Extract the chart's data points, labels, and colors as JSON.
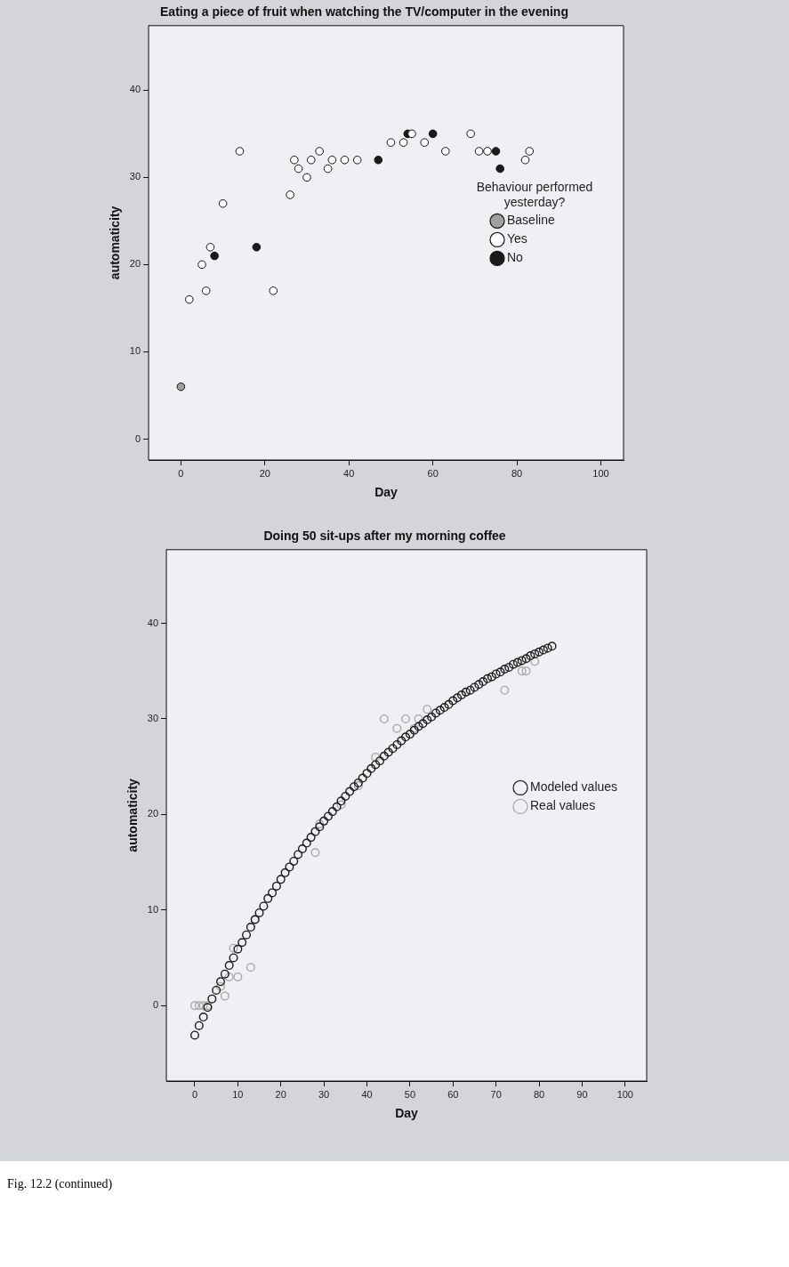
{
  "chart_data": [
    {
      "type": "scatter",
      "title": "Eating a piece of fruit when watching the TV/computer in the evening",
      "xlabel": "Day",
      "ylabel": "automaticity",
      "legend_title": "Behaviour performed yesterday?",
      "legend": "right",
      "marker": "circle",
      "grid": false,
      "xlim": [
        -7.7,
        105.4
      ],
      "ylim": [
        -2.4,
        47.4
      ],
      "xticks": [
        0,
        20,
        40,
        60,
        80,
        100
      ],
      "yticks": [
        0,
        10,
        20,
        30,
        40
      ],
      "series": [
        {
          "name": "Baseline",
          "color": "#a0a0a0",
          "x": [
            0
          ],
          "values": [
            6
          ]
        },
        {
          "name": "Yes",
          "color": "#ffffff",
          "x": [
            2,
            5,
            6,
            7,
            10,
            14,
            22,
            26,
            27,
            28,
            30,
            31,
            33,
            35,
            36,
            39,
            42,
            50,
            53,
            55,
            58,
            63,
            69,
            71,
            73,
            82,
            83
          ],
          "values": [
            16,
            20,
            17,
            22,
            27,
            33,
            17,
            28,
            32,
            31,
            30,
            32,
            33,
            31,
            32,
            32,
            32,
            34,
            34,
            35,
            34,
            33,
            35,
            33,
            33,
            32,
            33
          ]
        },
        {
          "name": "No",
          "color": "#1a1a1a",
          "x": [
            8,
            18,
            47,
            54,
            60,
            75,
            76
          ],
          "values": [
            21,
            22,
            32,
            35,
            35,
            33,
            31
          ]
        }
      ]
    },
    {
      "type": "scatter",
      "title": "Doing 50 sit-ups after my morning coffee",
      "xlabel": "Day",
      "ylabel": "automaticity",
      "legend": "right",
      "marker": "circle",
      "grid": false,
      "xlim": [
        -6.6,
        105
      ],
      "ylim": [
        -7.9,
        47.7
      ],
      "xticks": [
        0,
        10,
        20,
        30,
        40,
        50,
        60,
        70,
        80,
        90,
        100
      ],
      "yticks": [
        0,
        10,
        20,
        30,
        40
      ],
      "annotations": [
        "Fig. 12.2 (continued)"
      ],
      "series": [
        {
          "name": "Modeled values",
          "color": "#1a1a1a",
          "x": [
            0,
            1,
            2,
            3,
            4,
            5,
            6,
            7,
            8,
            9,
            10,
            11,
            12,
            13,
            14,
            15,
            16,
            17,
            18,
            19,
            20,
            21,
            22,
            23,
            24,
            25,
            26,
            27,
            28,
            29,
            30,
            31,
            32,
            33,
            34,
            35,
            36,
            37,
            38,
            39,
            40,
            41,
            42,
            43,
            44,
            45,
            46,
            47,
            48,
            49,
            50,
            51,
            52,
            53,
            54,
            55,
            56,
            57,
            58,
            59,
            60,
            61,
            62,
            63,
            64,
            65,
            66,
            67,
            68,
            69,
            70,
            71,
            72,
            73,
            74,
            75,
            76,
            77,
            78,
            79,
            80,
            81,
            82,
            83
          ],
          "values": [
            -3.1,
            -2.1,
            -1.2,
            -0.2,
            0.7,
            1.6,
            2.5,
            3.3,
            4.2,
            5.0,
            5.9,
            6.6,
            7.4,
            8.2,
            9.0,
            9.7,
            10.4,
            11.2,
            11.8,
            12.5,
            13.2,
            13.9,
            14.5,
            15.1,
            15.8,
            16.4,
            17.0,
            17.6,
            18.2,
            18.7,
            19.3,
            19.8,
            20.3,
            20.8,
            21.4,
            21.9,
            22.4,
            22.9,
            23.3,
            23.8,
            24.3,
            24.8,
            25.2,
            25.6,
            26.1,
            26.5,
            26.9,
            27.3,
            27.7,
            28.1,
            28.4,
            28.8,
            29.2,
            29.5,
            29.9,
            30.2,
            30.6,
            30.9,
            31.2,
            31.5,
            31.9,
            32.2,
            32.5,
            32.8,
            33.0,
            33.3,
            33.6,
            33.9,
            34.2,
            34.4,
            34.7,
            34.9,
            35.2,
            35.4,
            35.7,
            35.9,
            36.1,
            36.3,
            36.6,
            36.8,
            37.0,
            37.2,
            37.4,
            37.6
          ]
        },
        {
          "name": "Real values",
          "color": "#a8a8a8",
          "x": [
            0,
            1,
            2,
            3,
            6,
            7,
            8,
            9,
            10,
            13,
            14,
            28,
            29,
            34,
            38,
            42,
            44,
            47,
            49,
            51,
            52,
            54,
            72,
            76,
            77,
            79
          ],
          "values": [
            0,
            0,
            0,
            0,
            2,
            1,
            3,
            6,
            3,
            4,
            9,
            16,
            19,
            21,
            23,
            26,
            30,
            29,
            30,
            29,
            30,
            31,
            33,
            35,
            35,
            36
          ]
        }
      ]
    }
  ]
}
